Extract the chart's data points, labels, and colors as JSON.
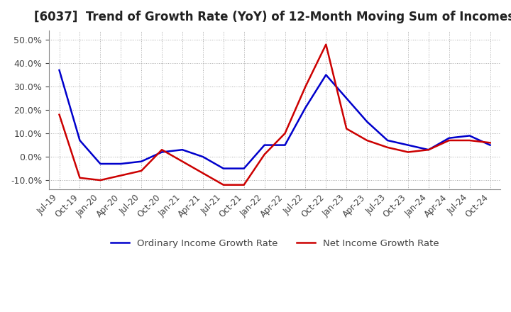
{
  "title": "[6037]  Trend of Growth Rate (YoY) of 12-Month Moving Sum of Incomes",
  "title_fontsize": 12,
  "ylim": [
    -0.14,
    0.54
  ],
  "yticks": [
    -0.1,
    0.0,
    0.1,
    0.2,
    0.3,
    0.4,
    0.5
  ],
  "background_color": "#ffffff",
  "plot_bg_color": "#ffffff",
  "ordinary_color": "#0000cc",
  "net_color": "#cc0000",
  "legend_labels": [
    "Ordinary Income Growth Rate",
    "Net Income Growth Rate"
  ],
  "x_labels": [
    "Jul-19",
    "Oct-19",
    "Jan-20",
    "Apr-20",
    "Jul-20",
    "Oct-20",
    "Jan-21",
    "Apr-21",
    "Jul-21",
    "Oct-21",
    "Jan-22",
    "Apr-22",
    "Jul-22",
    "Oct-22",
    "Jan-23",
    "Apr-23",
    "Jul-23",
    "Oct-23",
    "Jan-24",
    "Apr-24",
    "Jul-24",
    "Oct-24"
  ],
  "ordinary": [
    0.37,
    0.07,
    -0.03,
    -0.03,
    -0.02,
    0.02,
    0.03,
    0.0,
    -0.05,
    -0.05,
    0.05,
    0.05,
    0.21,
    0.35,
    0.25,
    0.15,
    0.07,
    0.05,
    0.03,
    0.08,
    0.09,
    0.05
  ],
  "net": [
    0.18,
    -0.09,
    -0.1,
    -0.08,
    -0.06,
    0.03,
    -0.02,
    -0.07,
    -0.12,
    -0.12,
    0.01,
    0.1,
    0.3,
    0.48,
    0.12,
    0.07,
    0.04,
    0.02,
    0.03,
    0.07,
    0.07,
    0.06
  ]
}
